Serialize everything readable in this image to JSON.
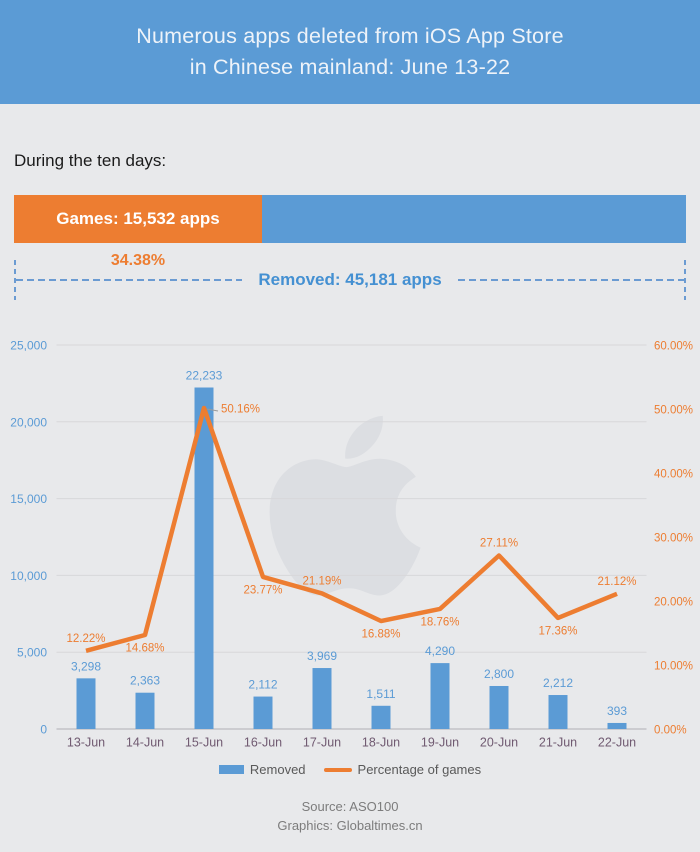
{
  "header": {
    "title_line1": "Numerous apps deleted from iOS App Store",
    "title_line2": "in Chinese mainland: June 13-22"
  },
  "summary": {
    "heading": "During the ten days:",
    "games_label": "Games: 15,532 apps",
    "games_pct_label": "34.38%",
    "removed_label": "Removed: 45,181 apps",
    "games_share_pct": 34.38,
    "games_count": 15532,
    "removed_total": 45181
  },
  "colors": {
    "blue": "#5b9bd5",
    "orange": "#ed7d31",
    "background": "#e8e9eb",
    "gridline": "#d7d7da",
    "axis_line": "#bbbbc0",
    "x_label": "#705a71",
    "legend_text": "#595959",
    "footer_text": "#7c7c7c",
    "watermark": "#dcdee2"
  },
  "chart_data": {
    "type": "bar",
    "subtype": "combo-bar-line",
    "categories": [
      "13-Jun",
      "14-Jun",
      "15-Jun",
      "16-Jun",
      "17-Jun",
      "18-Jun",
      "19-Jun",
      "20-Jun",
      "21-Jun",
      "22-Jun"
    ],
    "series": [
      {
        "name": "Removed",
        "type": "bar",
        "axis": "left",
        "color": "#5b9bd5",
        "values": [
          3298,
          2363,
          22233,
          2112,
          3969,
          1511,
          4290,
          2800,
          2212,
          393
        ],
        "labels": [
          "3,298",
          "2,363",
          "22,233",
          "2,112",
          "3,969",
          "1,511",
          "4,290",
          "2,800",
          "2,212",
          "393"
        ]
      },
      {
        "name": "Percentage of games",
        "type": "line",
        "axis": "right",
        "color": "#ed7d31",
        "values": [
          12.22,
          14.68,
          50.16,
          23.77,
          21.19,
          16.88,
          18.76,
          27.11,
          17.36,
          21.12
        ],
        "labels": [
          "12.22%",
          "14.68%",
          "50.16%",
          "23.77%",
          "21.19%",
          "16.88%",
          "18.76%",
          "27.11%",
          "17.36%",
          "21.12%"
        ],
        "label_sides": [
          "above",
          "below",
          "right",
          "below",
          "above",
          "below",
          "below",
          "above",
          "below",
          "above"
        ]
      }
    ],
    "left_axis": {
      "min": 0,
      "max": 25000,
      "ticks": [
        "25,000",
        "20,000",
        "15,000",
        "10,000",
        "5,000",
        "0"
      ]
    },
    "right_axis": {
      "min": 0,
      "max": 60,
      "ticks": [
        "60.00%",
        "50.00%",
        "40.00%",
        "30.00%",
        "20.00%",
        "10.00%",
        "0.00%"
      ]
    },
    "grid": "horizontal",
    "legend_position": "bottom-center",
    "watermark_icon": "apple-logo"
  },
  "legend": {
    "removed": "Removed",
    "percentage": "Percentage of games"
  },
  "footer": {
    "source": "Source: ASO100",
    "credit": "Graphics: Globaltimes.cn"
  }
}
